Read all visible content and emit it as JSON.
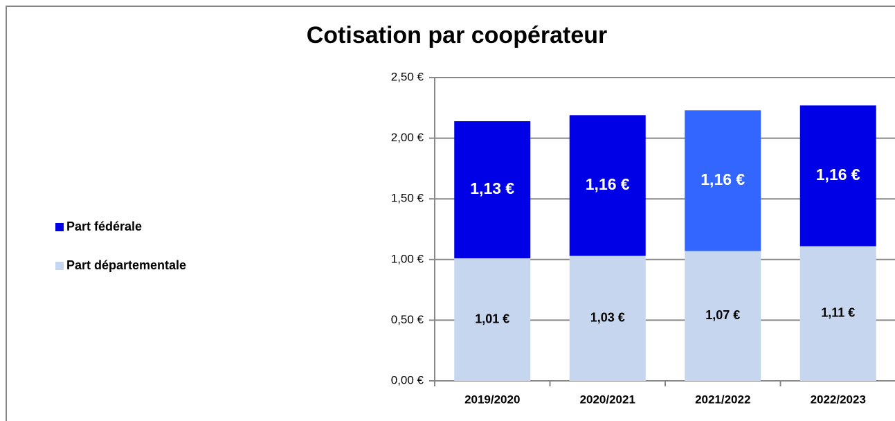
{
  "chart_data": {
    "type": "stacked-bar",
    "title": "Cotisation par coopérateur",
    "categories": [
      "2019/2020",
      "2020/2021",
      "2021/2022",
      "2022/2023"
    ],
    "series": [
      {
        "name": "Part départementale",
        "color": "#c6d6ef",
        "values": [
          1.01,
          1.03,
          1.07,
          1.11
        ],
        "value_labels": [
          "1,01 €",
          "1,03 €",
          "1,07 €",
          "1,11 €"
        ]
      },
      {
        "name": "Part fédérale",
        "color": "#0000e6",
        "colors": [
          "#0000e6",
          "#0000e6",
          "#3366ff",
          "#0000e6"
        ],
        "values": [
          1.13,
          1.16,
          1.16,
          1.16
        ],
        "value_labels": [
          "1,13 €",
          "1,16 €",
          "1,16 €",
          "1,16 €"
        ]
      }
    ],
    "ylim": [
      0,
      2.5
    ],
    "yticks": [
      {
        "value": 0,
        "label": "0,00 €"
      },
      {
        "value": 0.5,
        "label": "0,50 €"
      },
      {
        "value": 1,
        "label": "1,00 €"
      },
      {
        "value": 1.5,
        "label": "1,50 €"
      },
      {
        "value": 2,
        "label": "2,00 €"
      },
      {
        "value": 2.5,
        "label": "2,50 €"
      }
    ],
    "grid": true,
    "legend": "left"
  }
}
